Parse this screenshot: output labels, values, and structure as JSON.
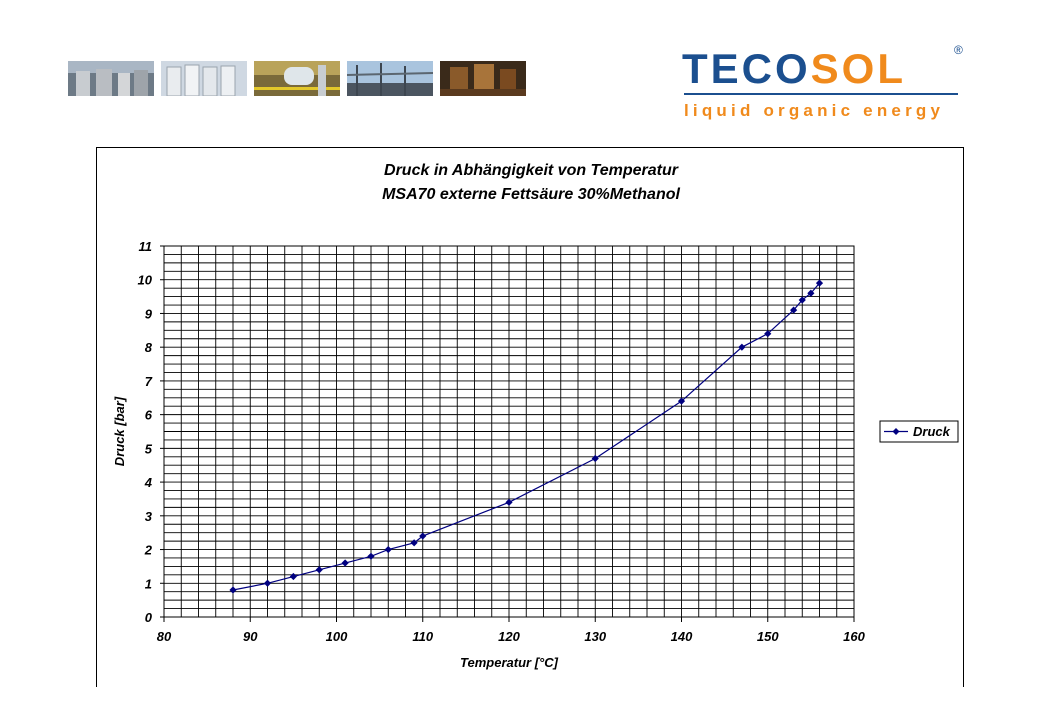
{
  "header": {
    "photos": [
      "industrial-plant-photo-1",
      "industrial-plant-photo-2",
      "industrial-plant-photo-3",
      "industrial-plant-photo-4",
      "industrial-plant-photo-5"
    ],
    "logo": {
      "text_primary": "TECO",
      "text_secondary": "SOL",
      "registered": "®",
      "tagline": "liquid organic energy",
      "colors": {
        "primary": "#1b4f8f",
        "secondary": "#f08a1c"
      }
    }
  },
  "chart_data": {
    "type": "line",
    "title": "Druck in Abhängigkeit von Temperatur",
    "subtitle": "MSA70 externe Fettsäure 30%Methanol",
    "xlabel": "Temperatur [°C]",
    "ylabel": "Druck [bar]",
    "xlim": [
      80,
      160
    ],
    "ylim": [
      0,
      11
    ],
    "xticks": [
      80,
      90,
      100,
      110,
      120,
      130,
      140,
      150,
      160
    ],
    "yticks": [
      0,
      1,
      2,
      3,
      4,
      5,
      6,
      7,
      8,
      9,
      10,
      11
    ],
    "grid": true,
    "legend_position": "right",
    "series": [
      {
        "name": "Druck",
        "color": "#000080",
        "marker": "diamond",
        "x": [
          88,
          92,
          95,
          98,
          101,
          104,
          106,
          109,
          110,
          120,
          130,
          140,
          147,
          150,
          153,
          154,
          155,
          156
        ],
        "y": [
          0.8,
          1.0,
          1.2,
          1.4,
          1.6,
          1.8,
          2.0,
          2.2,
          2.4,
          3.4,
          4.7,
          6.4,
          8.0,
          8.4,
          9.1,
          9.4,
          9.6,
          9.9
        ]
      }
    ]
  }
}
